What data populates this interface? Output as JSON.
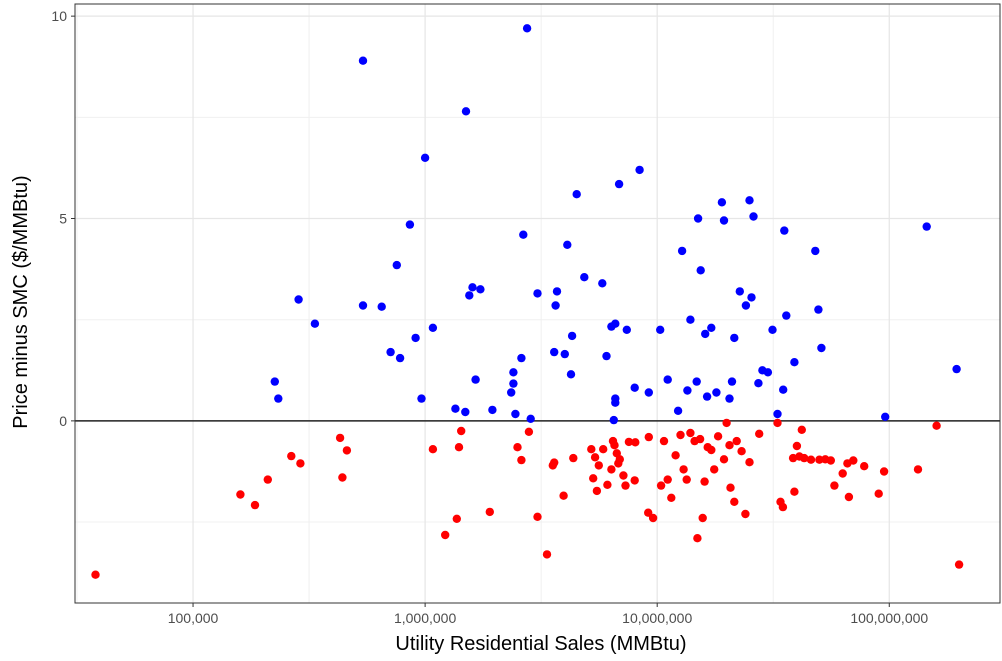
{
  "chart_data": {
    "type": "scatter",
    "title": "",
    "xlabel": "Utility Residential Sales (MMBtu)",
    "ylabel": "Price minus SMC ($/MMBtu)",
    "x_scale": "log10",
    "xlim": [
      31000,
      300000000
    ],
    "ylim": [
      -4.5,
      10.3
    ],
    "x_ticks": [
      100000,
      1000000,
      10000000,
      100000000
    ],
    "x_tick_labels": [
      "100,000",
      "1,000,000",
      "10,000,000",
      "100,000,000"
    ],
    "y_ticks": [
      0,
      5,
      10
    ],
    "y_tick_labels": [
      "0",
      "5",
      "10"
    ],
    "reference_line_y": 0,
    "grid": true,
    "legend": "none",
    "series": [
      {
        "color": "#0000ff",
        "points": [
          [
            225000,
            0.97
          ],
          [
            233000,
            0.55
          ],
          [
            285000,
            3.0
          ],
          [
            335000,
            2.4
          ],
          [
            540000,
            8.9
          ],
          [
            540000,
            2.85
          ],
          [
            650000,
            2.82
          ],
          [
            710000,
            1.7
          ],
          [
            755000,
            3.85
          ],
          [
            780000,
            1.55
          ],
          [
            860000,
            4.85
          ],
          [
            910000,
            2.05
          ],
          [
            965000,
            0.55
          ],
          [
            1000000,
            6.5
          ],
          [
            1080000,
            2.3
          ],
          [
            1350000,
            0.3
          ],
          [
            1490000,
            0.22
          ],
          [
            1500000,
            7.65
          ],
          [
            1550000,
            3.1
          ],
          [
            1600000,
            3.3
          ],
          [
            1650000,
            1.02
          ],
          [
            1730000,
            3.25
          ],
          [
            1950000,
            0.27
          ],
          [
            2350000,
            0.7
          ],
          [
            2400000,
            0.92
          ],
          [
            2400000,
            1.2
          ],
          [
            2450000,
            0.17
          ],
          [
            2600000,
            1.55
          ],
          [
            2650000,
            4.6
          ],
          [
            2750000,
            9.7
          ],
          [
            2850000,
            0.05
          ],
          [
            3050000,
            3.15
          ],
          [
            3600000,
            1.7
          ],
          [
            3650000,
            2.85
          ],
          [
            3700000,
            3.2
          ],
          [
            4000000,
            1.65
          ],
          [
            4100000,
            4.35
          ],
          [
            4250000,
            1.15
          ],
          [
            4300000,
            2.1
          ],
          [
            4500000,
            5.6
          ],
          [
            4850000,
            3.55
          ],
          [
            5800000,
            3.4
          ],
          [
            6050000,
            1.6
          ],
          [
            6350000,
            2.33
          ],
          [
            6600000,
            2.4
          ],
          [
            6500000,
            0.02
          ],
          [
            6600000,
            0.45
          ],
          [
            6600000,
            0.55
          ],
          [
            6850000,
            5.85
          ],
          [
            7400000,
            2.25
          ],
          [
            8000000,
            0.82
          ],
          [
            8400000,
            6.2
          ],
          [
            9200000,
            0.7
          ],
          [
            10300000,
            2.25
          ],
          [
            11100000,
            1.02
          ],
          [
            12300000,
            0.25
          ],
          [
            12800000,
            4.2
          ],
          [
            13500000,
            0.75
          ],
          [
            13900000,
            2.5
          ],
          [
            14800000,
            0.97
          ],
          [
            15000000,
            5.0
          ],
          [
            15400000,
            3.72
          ],
          [
            16100000,
            2.15
          ],
          [
            16400000,
            0.6
          ],
          [
            17100000,
            2.3
          ],
          [
            18000000,
            0.7
          ],
          [
            19000000,
            5.4
          ],
          [
            19400000,
            4.95
          ],
          [
            20500000,
            0.55
          ],
          [
            21000000,
            0.97
          ],
          [
            21500000,
            2.05
          ],
          [
            22700000,
            3.2
          ],
          [
            24100000,
            2.85
          ],
          [
            25000000,
            5.45
          ],
          [
            25500000,
            3.05
          ],
          [
            26000000,
            5.05
          ],
          [
            27300000,
            0.93
          ],
          [
            28400000,
            1.25
          ],
          [
            30000000,
            1.2
          ],
          [
            31400000,
            2.25
          ],
          [
            33000000,
            0.17
          ],
          [
            34900000,
            0.77
          ],
          [
            35300000,
            4.7
          ],
          [
            36000000,
            2.6
          ],
          [
            39000000,
            1.45
          ],
          [
            48000000,
            4.2
          ],
          [
            49500000,
            2.75
          ],
          [
            51000000,
            1.8
          ],
          [
            96000000,
            0.1
          ],
          [
            145000000,
            4.8
          ],
          [
            195000000,
            1.28
          ]
        ]
      },
      {
        "color": "#ff0000",
        "points": [
          [
            38000,
            -3.8
          ],
          [
            160000,
            -1.82
          ],
          [
            185000,
            -2.08
          ],
          [
            210000,
            -1.45
          ],
          [
            265000,
            -0.87
          ],
          [
            290000,
            -1.05
          ],
          [
            430000,
            -0.42
          ],
          [
            440000,
            -1.4
          ],
          [
            460000,
            -0.73
          ],
          [
            1080000,
            -0.7
          ],
          [
            1220000,
            -2.82
          ],
          [
            1370000,
            -2.42
          ],
          [
            1400000,
            -0.65
          ],
          [
            1430000,
            -0.25
          ],
          [
            1900000,
            -2.25
          ],
          [
            2500000,
            -0.65
          ],
          [
            2600000,
            -0.97
          ],
          [
            2800000,
            -0.27
          ],
          [
            3050000,
            -2.37
          ],
          [
            3350000,
            -3.3
          ],
          [
            3550000,
            -1.1
          ],
          [
            3600000,
            -1.03
          ],
          [
            3950000,
            -1.85
          ],
          [
            4350000,
            -0.92
          ],
          [
            5200000,
            -0.7
          ],
          [
            5300000,
            -1.42
          ],
          [
            5400000,
            -0.9
          ],
          [
            5500000,
            -1.73
          ],
          [
            5600000,
            -1.1
          ],
          [
            5850000,
            -0.7
          ],
          [
            6100000,
            -1.58
          ],
          [
            6350000,
            -1.2
          ],
          [
            6450000,
            -0.5
          ],
          [
            6550000,
            -0.6
          ],
          [
            6700000,
            -0.8
          ],
          [
            6800000,
            -1.05
          ],
          [
            6900000,
            -0.95
          ],
          [
            7150000,
            -1.35
          ],
          [
            7300000,
            -1.6
          ],
          [
            7550000,
            -0.52
          ],
          [
            8000000,
            -1.47
          ],
          [
            8050000,
            -0.53
          ],
          [
            9150000,
            -2.27
          ],
          [
            9200000,
            -0.4
          ],
          [
            9600000,
            -2.4
          ],
          [
            10400000,
            -1.6
          ],
          [
            10700000,
            -0.5
          ],
          [
            11100000,
            -1.45
          ],
          [
            11500000,
            -1.9
          ],
          [
            12000000,
            -0.85
          ],
          [
            12600000,
            -0.35
          ],
          [
            13000000,
            -1.2
          ],
          [
            13400000,
            -1.45
          ],
          [
            13900000,
            -0.3
          ],
          [
            14500000,
            -0.5
          ],
          [
            14900000,
            -2.9
          ],
          [
            15300000,
            -0.45
          ],
          [
            15700000,
            -2.4
          ],
          [
            16000000,
            -1.5
          ],
          [
            16500000,
            -0.65
          ],
          [
            17100000,
            -0.72
          ],
          [
            17600000,
            -1.2
          ],
          [
            18300000,
            -0.38
          ],
          [
            19400000,
            -0.95
          ],
          [
            19900000,
            -0.05
          ],
          [
            20500000,
            -0.6
          ],
          [
            20700000,
            -1.65
          ],
          [
            21500000,
            -2.0
          ],
          [
            22000000,
            -0.5
          ],
          [
            23100000,
            -0.75
          ],
          [
            24000000,
            -2.3
          ],
          [
            25000000,
            -1.02
          ],
          [
            27500000,
            -0.32
          ],
          [
            33000000,
            -0.05
          ],
          [
            34000000,
            -2.0
          ],
          [
            34800000,
            -2.13
          ],
          [
            38500000,
            -0.92
          ],
          [
            39000000,
            -1.75
          ],
          [
            40000000,
            -0.62
          ],
          [
            41000000,
            -0.88
          ],
          [
            42000000,
            -0.22
          ],
          [
            43000000,
            -0.92
          ],
          [
            46000000,
            -0.96
          ],
          [
            50000000,
            -0.96
          ],
          [
            53000000,
            -0.95
          ],
          [
            56000000,
            -0.98
          ],
          [
            58000000,
            -1.6
          ],
          [
            63000000,
            -1.3
          ],
          [
            66000000,
            -1.05
          ],
          [
            67000000,
            -1.88
          ],
          [
            70000000,
            -0.98
          ],
          [
            78000000,
            -1.12
          ],
          [
            90000000,
            -1.8
          ],
          [
            95000000,
            -1.25
          ],
          [
            133000000,
            -1.2
          ],
          [
            160000000,
            -0.12
          ],
          [
            200000000,
            -3.55
          ]
        ]
      }
    ]
  }
}
